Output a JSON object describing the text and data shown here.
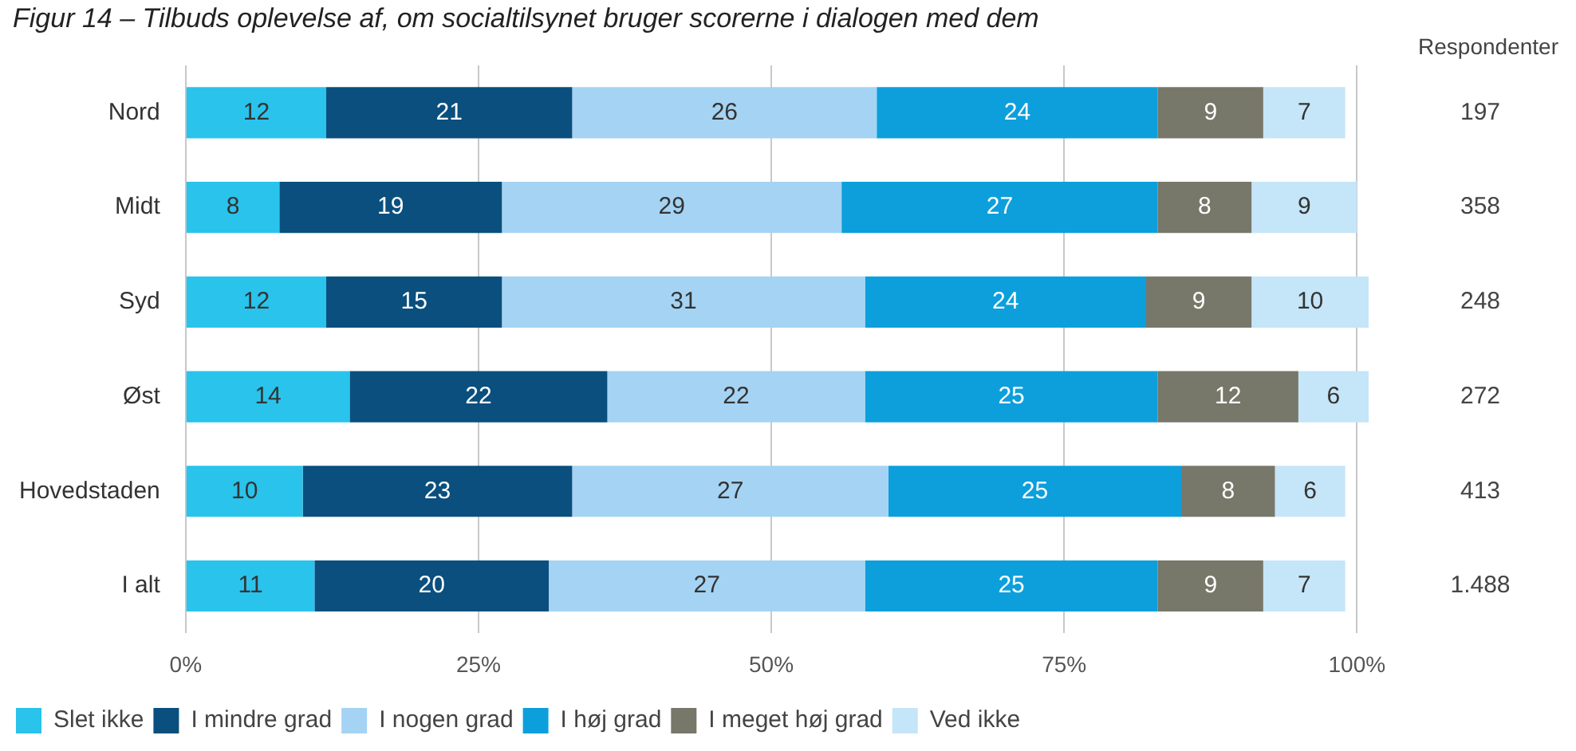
{
  "chart_data": {
    "type": "bar",
    "orientation": "horizontal",
    "stacked": true,
    "title": "Figur 14 – Tilbuds oplevelse af, om socialtilsynet bruger scorerne i dialogen med dem",
    "categories": [
      "Nord",
      "Midt",
      "Syd",
      "Øst",
      "Hovedstaden",
      "I alt"
    ],
    "series": [
      {
        "name": "Slet ikke",
        "color": "#29c3ec",
        "values": [
          12,
          8,
          12,
          14,
          10,
          11
        ]
      },
      {
        "name": "I mindre grad",
        "color": "#0a4f7e",
        "values": [
          21,
          19,
          15,
          22,
          23,
          20
        ]
      },
      {
        "name": "I nogen grad",
        "color": "#a5d3f3",
        "values": [
          26,
          29,
          31,
          22,
          27,
          27
        ]
      },
      {
        "name": "I høj grad",
        "color": "#0c9fdc",
        "values": [
          24,
          27,
          24,
          25,
          25,
          25
        ]
      },
      {
        "name": "I meget høj grad",
        "color": "#77776a",
        "values": [
          9,
          8,
          9,
          12,
          8,
          9
        ]
      },
      {
        "name": "Ved ikke",
        "color": "#c5e5f8",
        "values": [
          7,
          9,
          10,
          6,
          6,
          7
        ]
      }
    ],
    "xlim": [
      0,
      101
    ],
    "xticks": [
      {
        "value": 0,
        "label": "0%"
      },
      {
        "value": 25,
        "label": "25%"
      },
      {
        "value": 50,
        "label": "50%"
      },
      {
        "value": 75,
        "label": "75%"
      },
      {
        "value": 100,
        "label": "100%"
      }
    ],
    "grid": "x",
    "legend": "bottom",
    "data_labels": true,
    "annotations": [
      "Respondenter",
      "197",
      "358",
      "248",
      "272",
      "413",
      "1.488"
    ]
  }
}
